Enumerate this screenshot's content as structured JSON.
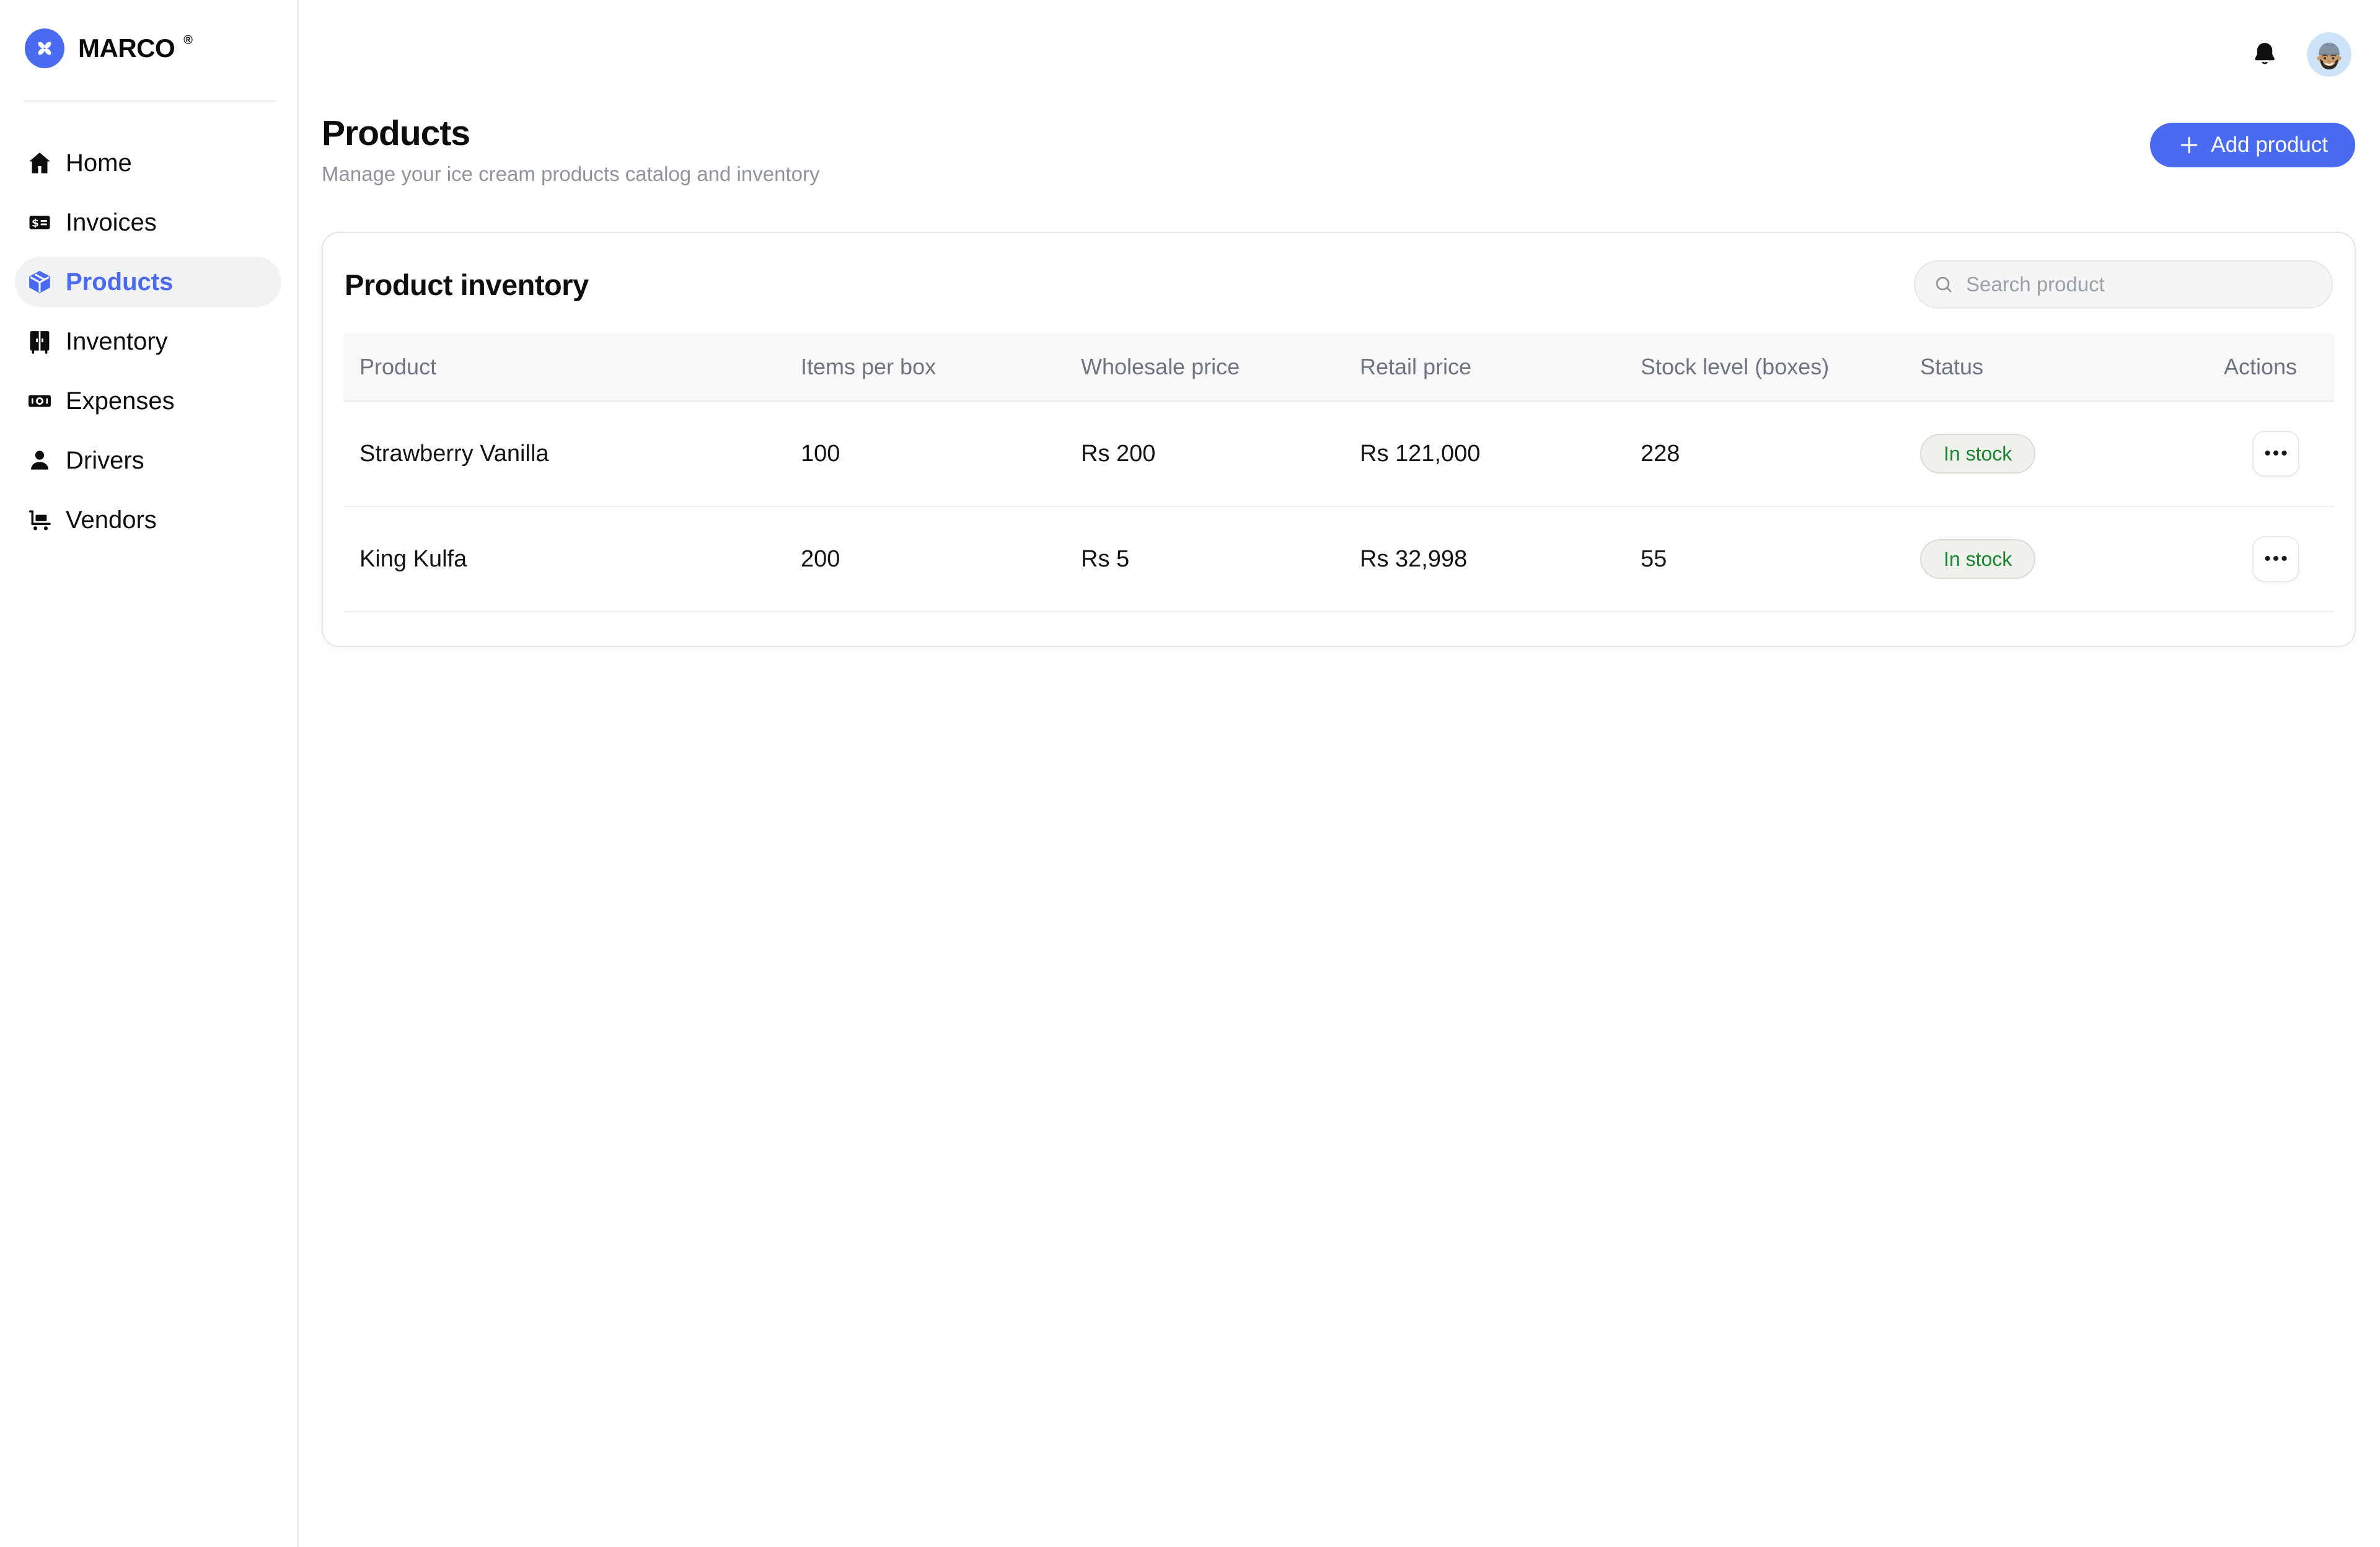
{
  "colors": {
    "accent": "#4a6bf1",
    "badge_text": "#1b8430",
    "badge_bg": "#eef1ec",
    "avatar_bg": "#cce3f7"
  },
  "brand": {
    "name": "MARCO",
    "registered": "®"
  },
  "sidebar": {
    "items": [
      {
        "label": "Home",
        "icon": "home-icon",
        "active": false
      },
      {
        "label": "Invoices",
        "icon": "invoices-icon",
        "active": false
      },
      {
        "label": "Products",
        "icon": "products-icon",
        "active": true
      },
      {
        "label": "Inventory",
        "icon": "inventory-icon",
        "active": false
      },
      {
        "label": "Expenses",
        "icon": "expenses-icon",
        "active": false
      },
      {
        "label": "Drivers",
        "icon": "drivers-icon",
        "active": false
      },
      {
        "label": "Vendors",
        "icon": "vendors-icon",
        "active": false
      }
    ]
  },
  "topbar": {
    "icons": [
      "bell-icon",
      "user-avatar"
    ]
  },
  "header": {
    "title": "Products",
    "subtitle": "Manage your ice cream products catalog and inventory",
    "add_button_label": "Add product"
  },
  "inventory_card": {
    "title": "Product inventory",
    "search_placeholder": "Search product",
    "columns": [
      "Product",
      "Items per box",
      "Wholesale price",
      "Retail price",
      "Stock level (boxes)",
      "Status",
      "Actions"
    ],
    "rows": [
      {
        "product": "Strawberry Vanilla",
        "items_per_box": "100",
        "wholesale_price": "Rs 200",
        "retail_price": "Rs 121,000",
        "stock_level": "228",
        "status": "In stock"
      },
      {
        "product": "King Kulfa",
        "items_per_box": "200",
        "wholesale_price": "Rs 5",
        "retail_price": "Rs 32,998",
        "stock_level": "55",
        "status": "In stock"
      }
    ]
  },
  "icons": {
    "ellipsis": "•••"
  }
}
